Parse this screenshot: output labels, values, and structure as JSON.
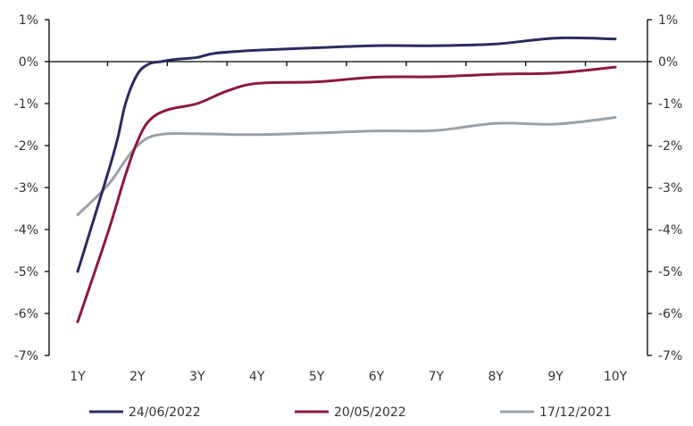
{
  "chart_data": {
    "type": "line",
    "title": "",
    "xlabel": "",
    "ylabel": "",
    "categories": [
      "1Y",
      "2Y",
      "3Y",
      "4Y",
      "5Y",
      "6Y",
      "7Y",
      "8Y",
      "9Y",
      "10Y"
    ],
    "ylim": [
      -7,
      1
    ],
    "yticks": [
      1,
      0,
      -1,
      -2,
      -3,
      -4,
      -5,
      -6,
      -7
    ],
    "ytick_labels": [
      "1%",
      "0%",
      "-1%",
      "-2%",
      "-3%",
      "-4%",
      "-5%",
      "-6%",
      "-7%"
    ],
    "y_axis_both_sides": true,
    "grid": false,
    "legend_position": "bottom",
    "series": [
      {
        "name": "24/06/2022",
        "color": "#2b2a5e",
        "x": [
          1,
          1.6,
          1.8,
          2,
          2.2,
          2.4,
          2.6,
          3,
          3.3,
          4,
          5,
          6,
          7,
          8,
          9,
          10
        ],
        "values": [
          -5.0,
          -2.2,
          -1.0,
          -0.3,
          -0.05,
          0.0,
          0.05,
          0.1,
          0.2,
          0.27,
          0.33,
          0.38,
          0.38,
          0.42,
          0.56,
          0.54
        ]
      },
      {
        "name": "20/05/2022",
        "color": "#8b1a3a",
        "x": [
          1,
          1.5,
          1.8,
          2,
          2.2,
          2.5,
          3,
          3.5,
          4,
          5,
          6,
          7,
          8,
          9,
          10
        ],
        "values": [
          -6.2,
          -4.1,
          -2.7,
          -1.9,
          -1.4,
          -1.15,
          -1.0,
          -0.7,
          -0.52,
          -0.48,
          -0.37,
          -0.36,
          -0.3,
          -0.27,
          -0.13
        ]
      },
      {
        "name": "17/12/2021",
        "color": "#9aa1a6",
        "x": [
          1,
          1.5,
          1.8,
          2,
          2.2,
          2.5,
          3,
          4,
          5,
          6,
          7,
          8,
          9,
          10
        ],
        "values": [
          -3.65,
          -2.95,
          -2.35,
          -2.0,
          -1.8,
          -1.72,
          -1.72,
          -1.74,
          -1.7,
          -1.65,
          -1.64,
          -1.47,
          -1.49,
          -1.33
        ]
      }
    ]
  }
}
